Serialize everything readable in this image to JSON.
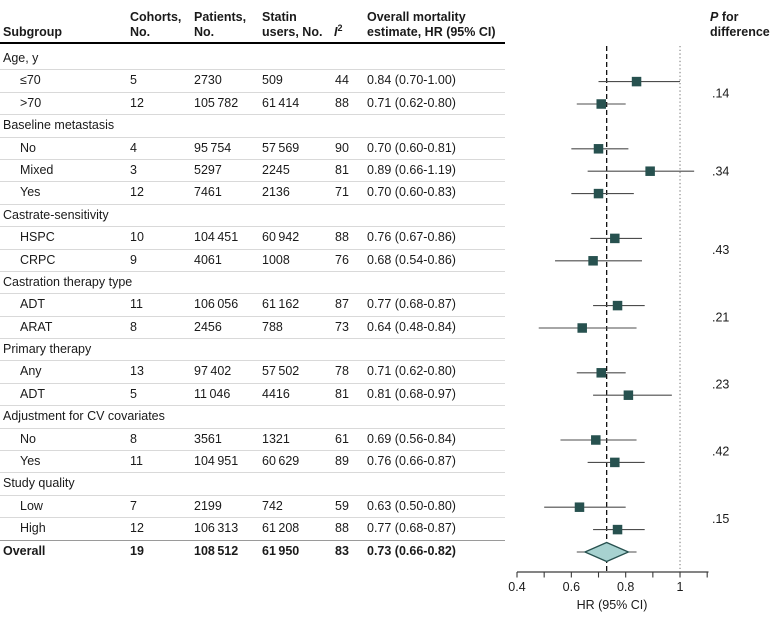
{
  "header": {
    "subgroup": "Subgroup",
    "cohorts_l1": "Cohorts,",
    "cohorts_l2": "No.",
    "patients_l1": "Patients,",
    "patients_l2": "No.",
    "statin_l1": "Statin",
    "statin_l2": "users, No.",
    "i2_base": "I",
    "i2_sup": "2",
    "mortality_l1": "Overall mortality",
    "mortality_l2": "estimate, HR (95% CI)",
    "p_symbol": "P",
    "p_rest": " for",
    "p_line2": "difference"
  },
  "colors": {
    "marker": "#27514f",
    "diamond_fill": "#a7d2d0",
    "ci_line": "#4d4d4d",
    "axis": "#3a3a3a",
    "pooled_dash_line": "#111111",
    "reference_dot_line": "#808080",
    "row_separator": "#d9d9d9",
    "text": "#1a1a1a"
  },
  "chart_data": {
    "type": "forest",
    "xlabel": "HR (95% CI)",
    "xlim": [
      0.4,
      1.1
    ],
    "x_scale": "linear",
    "x_ticks": [
      0.4,
      0.5,
      0.6,
      0.7,
      0.8,
      0.9,
      1.0,
      1.1
    ],
    "x_tick_labels": [
      {
        "v": 0.4,
        "t": "0.4"
      },
      {
        "v": 0.6,
        "t": "0.6"
      },
      {
        "v": 0.8,
        "t": "0.8"
      },
      {
        "v": 1.0,
        "t": "1"
      }
    ],
    "reference_line": 1.0,
    "overall_line": 0.73,
    "ci_clip_max": 1.052,
    "rows": [
      {
        "type": "section",
        "label": "Age, y",
        "p": ".14"
      },
      {
        "type": "item",
        "label": "≤70",
        "cohorts": "5",
        "patients": "2730",
        "statin_users": "509",
        "i2": "44",
        "hr_text": "0.84 (0.70-1.00)",
        "hr": 0.84,
        "ci": [
          0.7,
          1.0
        ]
      },
      {
        "type": "item",
        "label": ">70",
        "cohorts": "12",
        "patients": "105 782",
        "statin_users": "61 414",
        "i2": "88",
        "hr_text": "0.71 (0.62-0.80)",
        "hr": 0.71,
        "ci": [
          0.62,
          0.8
        ]
      },
      {
        "type": "section",
        "label": "Baseline metastasis",
        "p": ".34"
      },
      {
        "type": "item",
        "label": "No",
        "cohorts": "4",
        "patients": "95 754",
        "statin_users": "57 569",
        "i2": "90",
        "hr_text": "0.70 (0.60-0.81)",
        "hr": 0.7,
        "ci": [
          0.6,
          0.81
        ]
      },
      {
        "type": "item",
        "label": "Mixed",
        "cohorts": "3",
        "patients": "5297",
        "statin_users": "2245",
        "i2": "81",
        "hr_text": "0.89 (0.66-1.19)",
        "hr": 0.89,
        "ci": [
          0.66,
          1.19
        ]
      },
      {
        "type": "item",
        "label": "Yes",
        "cohorts": "12",
        "patients": "7461",
        "statin_users": "2136",
        "i2": "71",
        "hr_text": "0.70 (0.60-0.83)",
        "hr": 0.7,
        "ci": [
          0.6,
          0.83
        ]
      },
      {
        "type": "section",
        "label": "Castrate-sensitivity",
        "p": ".43"
      },
      {
        "type": "item",
        "label": "HSPC",
        "cohorts": "10",
        "patients": "104 451",
        "statin_users": "60 942",
        "i2": "88",
        "hr_text": "0.76 (0.67-0.86)",
        "hr": 0.76,
        "ci": [
          0.67,
          0.86
        ]
      },
      {
        "type": "item",
        "label": "CRPC",
        "cohorts": "9",
        "patients": "4061",
        "statin_users": "1008",
        "i2": "76",
        "hr_text": "0.68 (0.54-0.86)",
        "hr": 0.68,
        "ci": [
          0.54,
          0.86
        ]
      },
      {
        "type": "section",
        "label": "Castration therapy type",
        "p": ".21"
      },
      {
        "type": "item",
        "label": "ADT",
        "cohorts": "11",
        "patients": "106 056",
        "statin_users": "61 162",
        "i2": "87",
        "hr_text": "0.77 (0.68-0.87)",
        "hr": 0.77,
        "ci": [
          0.68,
          0.87
        ]
      },
      {
        "type": "item",
        "label": "ARAT",
        "cohorts": "8",
        "patients": "2456",
        "statin_users": "788",
        "i2": "73",
        "hr_text": "0.64 (0.48-0.84)",
        "hr": 0.64,
        "ci": [
          0.48,
          0.84
        ]
      },
      {
        "type": "section",
        "label": "Primary therapy",
        "p": ".23"
      },
      {
        "type": "item",
        "label": "Any",
        "cohorts": "13",
        "patients": "97 402",
        "statin_users": "57 502",
        "i2": "78",
        "hr_text": "0.71 (0.62-0.80)",
        "hr": 0.71,
        "ci": [
          0.62,
          0.8
        ]
      },
      {
        "type": "item",
        "label": "ADT",
        "cohorts": "5",
        "patients": "11 046",
        "statin_users": "4416",
        "i2": "81",
        "hr_text": "0.81 (0.68-0.97)",
        "hr": 0.81,
        "ci": [
          0.68,
          0.97
        ]
      },
      {
        "type": "section",
        "label": "Adjustment for CV covariates",
        "p": ".42"
      },
      {
        "type": "item",
        "label": "No",
        "cohorts": "8",
        "patients": "3561",
        "statin_users": "1321",
        "i2": "61",
        "hr_text": "0.69 (0.56-0.84)",
        "hr": 0.69,
        "ci": [
          0.56,
          0.84
        ]
      },
      {
        "type": "item",
        "label": "Yes",
        "cohorts": "11",
        "patients": "104 951",
        "statin_users": "60 629",
        "i2": "89",
        "hr_text": "0.76 (0.66-0.87)",
        "hr": 0.76,
        "ci": [
          0.66,
          0.87
        ]
      },
      {
        "type": "section",
        "label": "Study quality",
        "p": ".15"
      },
      {
        "type": "item",
        "label": "Low",
        "cohorts": "7",
        "patients": "2199",
        "statin_users": "742",
        "i2": "59",
        "hr_text": "0.63 (0.50-0.80)",
        "hr": 0.63,
        "ci": [
          0.5,
          0.8
        ]
      },
      {
        "type": "item",
        "label": "High",
        "cohorts": "12",
        "patients": "106 313",
        "statin_users": "61 208",
        "i2": "88",
        "hr_text": "0.77 (0.68-0.87)",
        "hr": 0.77,
        "ci": [
          0.68,
          0.87
        ]
      },
      {
        "type": "overall",
        "label": "Overall",
        "cohorts": "19",
        "patients": "108 512",
        "statin_users": "61 950",
        "i2": "83",
        "hr_text": "0.73 (0.66-0.82)",
        "hr": 0.73,
        "ci": [
          0.66,
          0.82
        ],
        "line_ci": [
          0.62,
          0.84
        ]
      }
    ]
  }
}
